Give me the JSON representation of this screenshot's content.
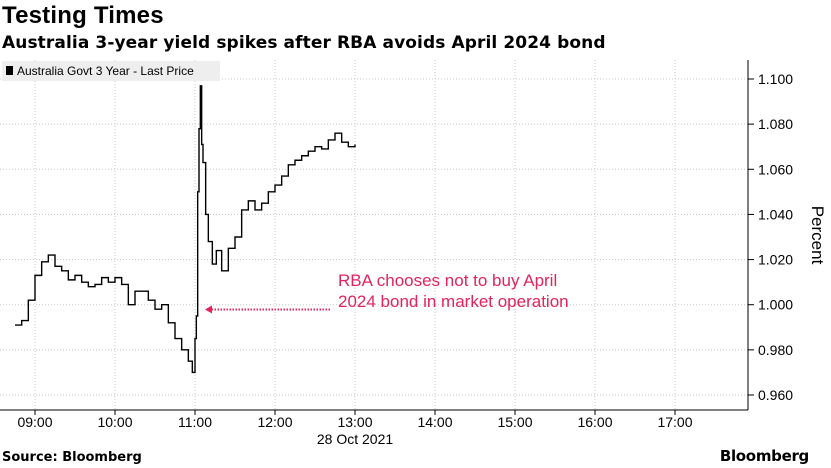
{
  "title": "Testing Times",
  "subtitle": "Australia 3-year yield spikes after RBA avoids April 2024 bond",
  "source": "Source: Bloomberg",
  "brand": "Bloomberg",
  "colors": {
    "line": "#000000",
    "grid": "#c8c8c8",
    "annotation": "#e0245e",
    "legend_bg": "#eeeeee"
  },
  "chart_data": {
    "type": "line",
    "series": [
      {
        "name": "Australia Govt 3 Year - Last Price",
        "color": "#000000",
        "x": [
          "08:45",
          "08:50",
          "08:55",
          "09:00",
          "09:05",
          "09:10",
          "09:15",
          "09:20",
          "09:25",
          "09:30",
          "09:35",
          "09:40",
          "09:45",
          "09:50",
          "09:55",
          "10:00",
          "10:05",
          "10:10",
          "10:15",
          "10:20",
          "10:25",
          "10:30",
          "10:35",
          "10:40",
          "10:45",
          "10:50",
          "10:55",
          "10:58",
          "11:00",
          "11:01",
          "11:02",
          "11:03",
          "11:04",
          "11:05",
          "11:06",
          "11:08",
          "11:10",
          "11:13",
          "11:16",
          "11:20",
          "11:25",
          "11:30",
          "11:35",
          "11:40",
          "11:45",
          "11:50",
          "11:55",
          "12:00",
          "12:05",
          "12:10",
          "12:15",
          "12:20",
          "12:25",
          "12:30",
          "12:35",
          "12:40",
          "12:45",
          "12:50",
          "12:55",
          "13:00"
        ],
        "values": [
          0.991,
          0.993,
          1.002,
          1.013,
          1.019,
          1.022,
          1.017,
          1.015,
          1.011,
          1.013,
          1.01,
          1.008,
          1.009,
          1.012,
          1.01,
          1.012,
          1.009,
          1.0,
          1.006,
          1.006,
          1.002,
          0.998,
          1.0,
          0.992,
          0.985,
          0.98,
          0.975,
          0.97,
          0.985,
          0.995,
          1.05,
          1.078,
          1.097,
          1.071,
          1.063,
          1.04,
          1.028,
          1.018,
          1.024,
          1.015,
          1.025,
          1.03,
          1.042,
          1.046,
          1.042,
          1.045,
          1.05,
          1.053,
          1.057,
          1.062,
          1.064,
          1.066,
          1.068,
          1.07,
          1.069,
          1.073,
          1.076,
          1.072,
          1.07,
          1.071
        ]
      }
    ],
    "xticks": [
      "09:00",
      "10:00",
      "11:00",
      "12:00",
      "13:00",
      "14:00",
      "15:00",
      "16:00",
      "17:00"
    ],
    "xlabel": "28 Oct 2021",
    "ylabel": "Percent",
    "yticks": [
      "1.100",
      "1.080",
      "1.060",
      "1.040",
      "1.020",
      "1.000",
      "0.980",
      "0.960"
    ],
    "ylim": [
      0.955,
      1.105
    ],
    "xlim": [
      "08:40",
      "18:00"
    ],
    "grid": true,
    "legend": "top-left",
    "y_axis_side": "right",
    "annotation": {
      "lines": [
        "RBA chooses not to buy April",
        "2024 bond in market operation"
      ],
      "points_to": {
        "x": "11:03",
        "y": 0.997
      }
    }
  }
}
